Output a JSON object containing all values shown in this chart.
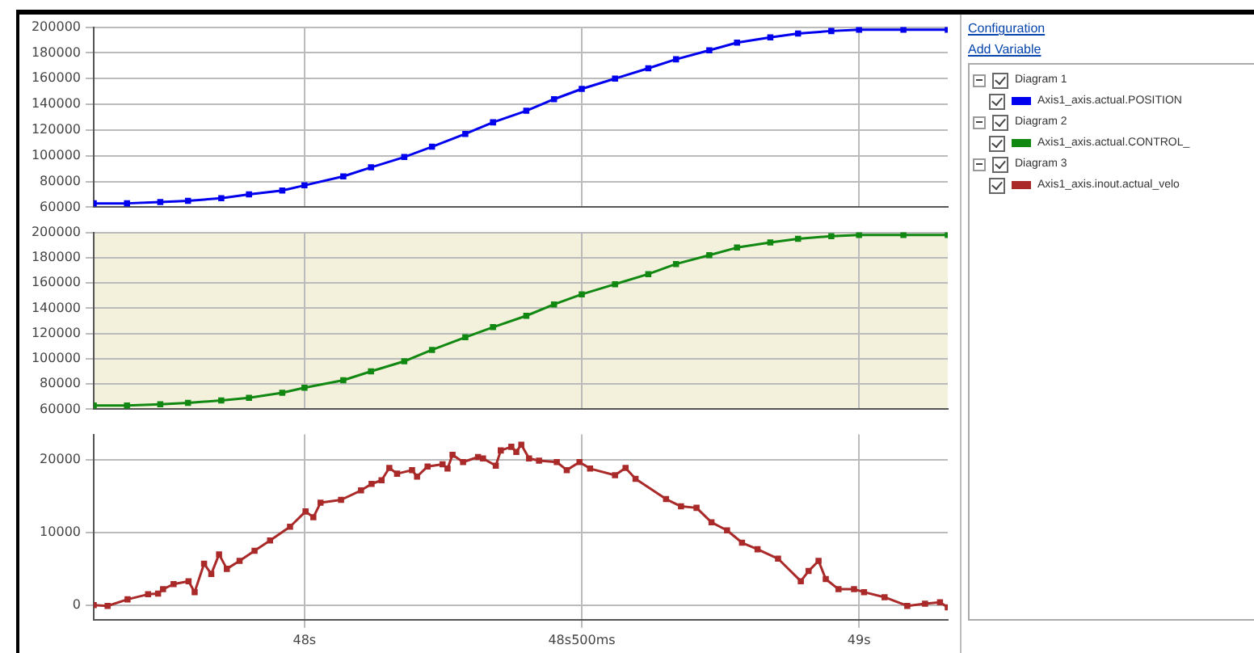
{
  "chart_data": [
    {
      "type": "line",
      "annotations": [
        "Configuration",
        "Add Variable"
      ],
      "legend_title": "Diagram 1",
      "legend": "right",
      "grid": true,
      "marker": "square",
      "tick_labels": "y",
      "x": [
        47.62,
        47.68,
        47.74,
        47.79,
        47.85,
        47.9,
        47.96,
        48.0,
        48.07,
        48.12,
        48.18,
        48.23,
        48.29,
        48.34,
        48.4,
        48.45,
        48.5,
        48.56,
        48.62,
        48.67,
        48.73,
        48.78,
        48.84,
        48.89,
        48.95,
        49.0,
        49.08,
        49.16
      ],
      "series": [
        {
          "name": "Axis1_axis.actual.POSITION",
          "color": "#0000ee",
          "values": [
            63000,
            63000,
            64000,
            65000,
            67000,
            70000,
            73000,
            77000,
            84000,
            91000,
            99000,
            107000,
            117000,
            126000,
            135000,
            144000,
            152000,
            160000,
            168000,
            175000,
            182000,
            188000,
            192000,
            195000,
            197000,
            198000,
            198000,
            198000
          ]
        }
      ],
      "xlim": [
        47.62,
        49.16
      ],
      "xticks": [
        {
          "value": 48,
          "label": null
        },
        {
          "value": 48.5,
          "label": null
        },
        {
          "value": 49,
          "label": null
        }
      ],
      "ylim": [
        60000,
        200000
      ],
      "yticks": [
        60000,
        80000,
        100000,
        120000,
        140000,
        160000,
        180000,
        200000
      ]
    },
    {
      "type": "line",
      "legend_title": "Diagram 2",
      "legend": "right",
      "grid": true,
      "marker": "square",
      "tick_labels": "y",
      "x": [
        47.62,
        47.68,
        47.74,
        47.79,
        47.85,
        47.9,
        47.96,
        48.0,
        48.07,
        48.12,
        48.18,
        48.23,
        48.29,
        48.34,
        48.4,
        48.45,
        48.5,
        48.56,
        48.62,
        48.67,
        48.73,
        48.78,
        48.84,
        48.89,
        48.95,
        49.0,
        49.08,
        49.16
      ],
      "series": [
        {
          "name": "Axis1_axis.actual.CONTROL_",
          "color": "#118811",
          "values": [
            63000,
            63000,
            64000,
            65000,
            67000,
            69000,
            73000,
            77000,
            83000,
            90000,
            98000,
            107000,
            117000,
            125000,
            134000,
            143000,
            151000,
            159000,
            167000,
            175000,
            182000,
            188000,
            192000,
            195000,
            197000,
            198000,
            198000,
            198000
          ]
        }
      ],
      "xlim": [
        47.62,
        49.16
      ],
      "xticks": [
        {
          "value": 48,
          "label": null
        },
        {
          "value": 48.5,
          "label": null
        },
        {
          "value": 49,
          "label": null
        }
      ],
      "ylim": [
        60000,
        200000
      ],
      "yticks": [
        60000,
        80000,
        100000,
        120000,
        140000,
        160000,
        180000,
        200000
      ]
    },
    {
      "type": "line",
      "legend_title": "Diagram 3",
      "legend": "right",
      "grid": true,
      "marker": "square",
      "x": [
        47.62,
        47.645,
        47.681,
        47.718,
        47.736,
        47.745,
        47.764,
        47.791,
        47.802,
        47.819,
        47.832,
        47.846,
        47.86,
        47.883,
        47.91,
        47.938,
        47.974,
        48.002,
        48.016,
        48.029,
        48.066,
        48.102,
        48.121,
        48.139,
        48.153,
        48.167,
        48.194,
        48.203,
        48.222,
        48.249,
        48.258,
        48.267,
        48.286,
        48.313,
        48.322,
        48.345,
        48.354,
        48.373,
        48.382,
        48.391,
        48.405,
        48.423,
        48.455,
        48.473,
        48.496,
        48.515,
        48.56,
        48.579,
        48.597,
        48.652,
        48.679,
        48.707,
        48.734,
        48.762,
        48.789,
        48.817,
        48.854,
        48.895,
        48.909,
        48.927,
        48.94,
        48.963,
        48.991,
        49.009,
        49.046,
        49.087,
        49.119,
        49.146,
        49.16
      ],
      "series": [
        {
          "name": "Axis1_axis.inout.actual_velo",
          "color": "#aa2a2a",
          "values": [
            0,
            -100,
            800,
            1500,
            1600,
            2200,
            2900,
            3300,
            1800,
            5700,
            4300,
            7000,
            5000,
            6100,
            7500,
            8900,
            10800,
            12900,
            12100,
            14100,
            14500,
            15800,
            16700,
            17200,
            18900,
            18100,
            18600,
            17700,
            19100,
            19400,
            18800,
            20700,
            19700,
            20400,
            20200,
            19200,
            21300,
            21800,
            21100,
            22100,
            20200,
            19900,
            19700,
            18600,
            19700,
            18800,
            17900,
            18900,
            17400,
            14600,
            13600,
            13400,
            11400,
            10300,
            8600,
            7700,
            6400,
            3300,
            4700,
            6100,
            3600,
            2200,
            2200,
            1800,
            1100,
            -100,
            200,
            400,
            -300
          ]
        }
      ],
      "xlim": [
        47.62,
        49.16
      ],
      "xticks": [
        {
          "value": 48,
          "label": "48s"
        },
        {
          "value": 48.5,
          "label": "48s500ms"
        },
        {
          "value": 49,
          "label": "49s"
        }
      ],
      "ylim": [
        -2000,
        23500
      ],
      "yticks": [
        0,
        10000,
        20000
      ]
    }
  ]
}
